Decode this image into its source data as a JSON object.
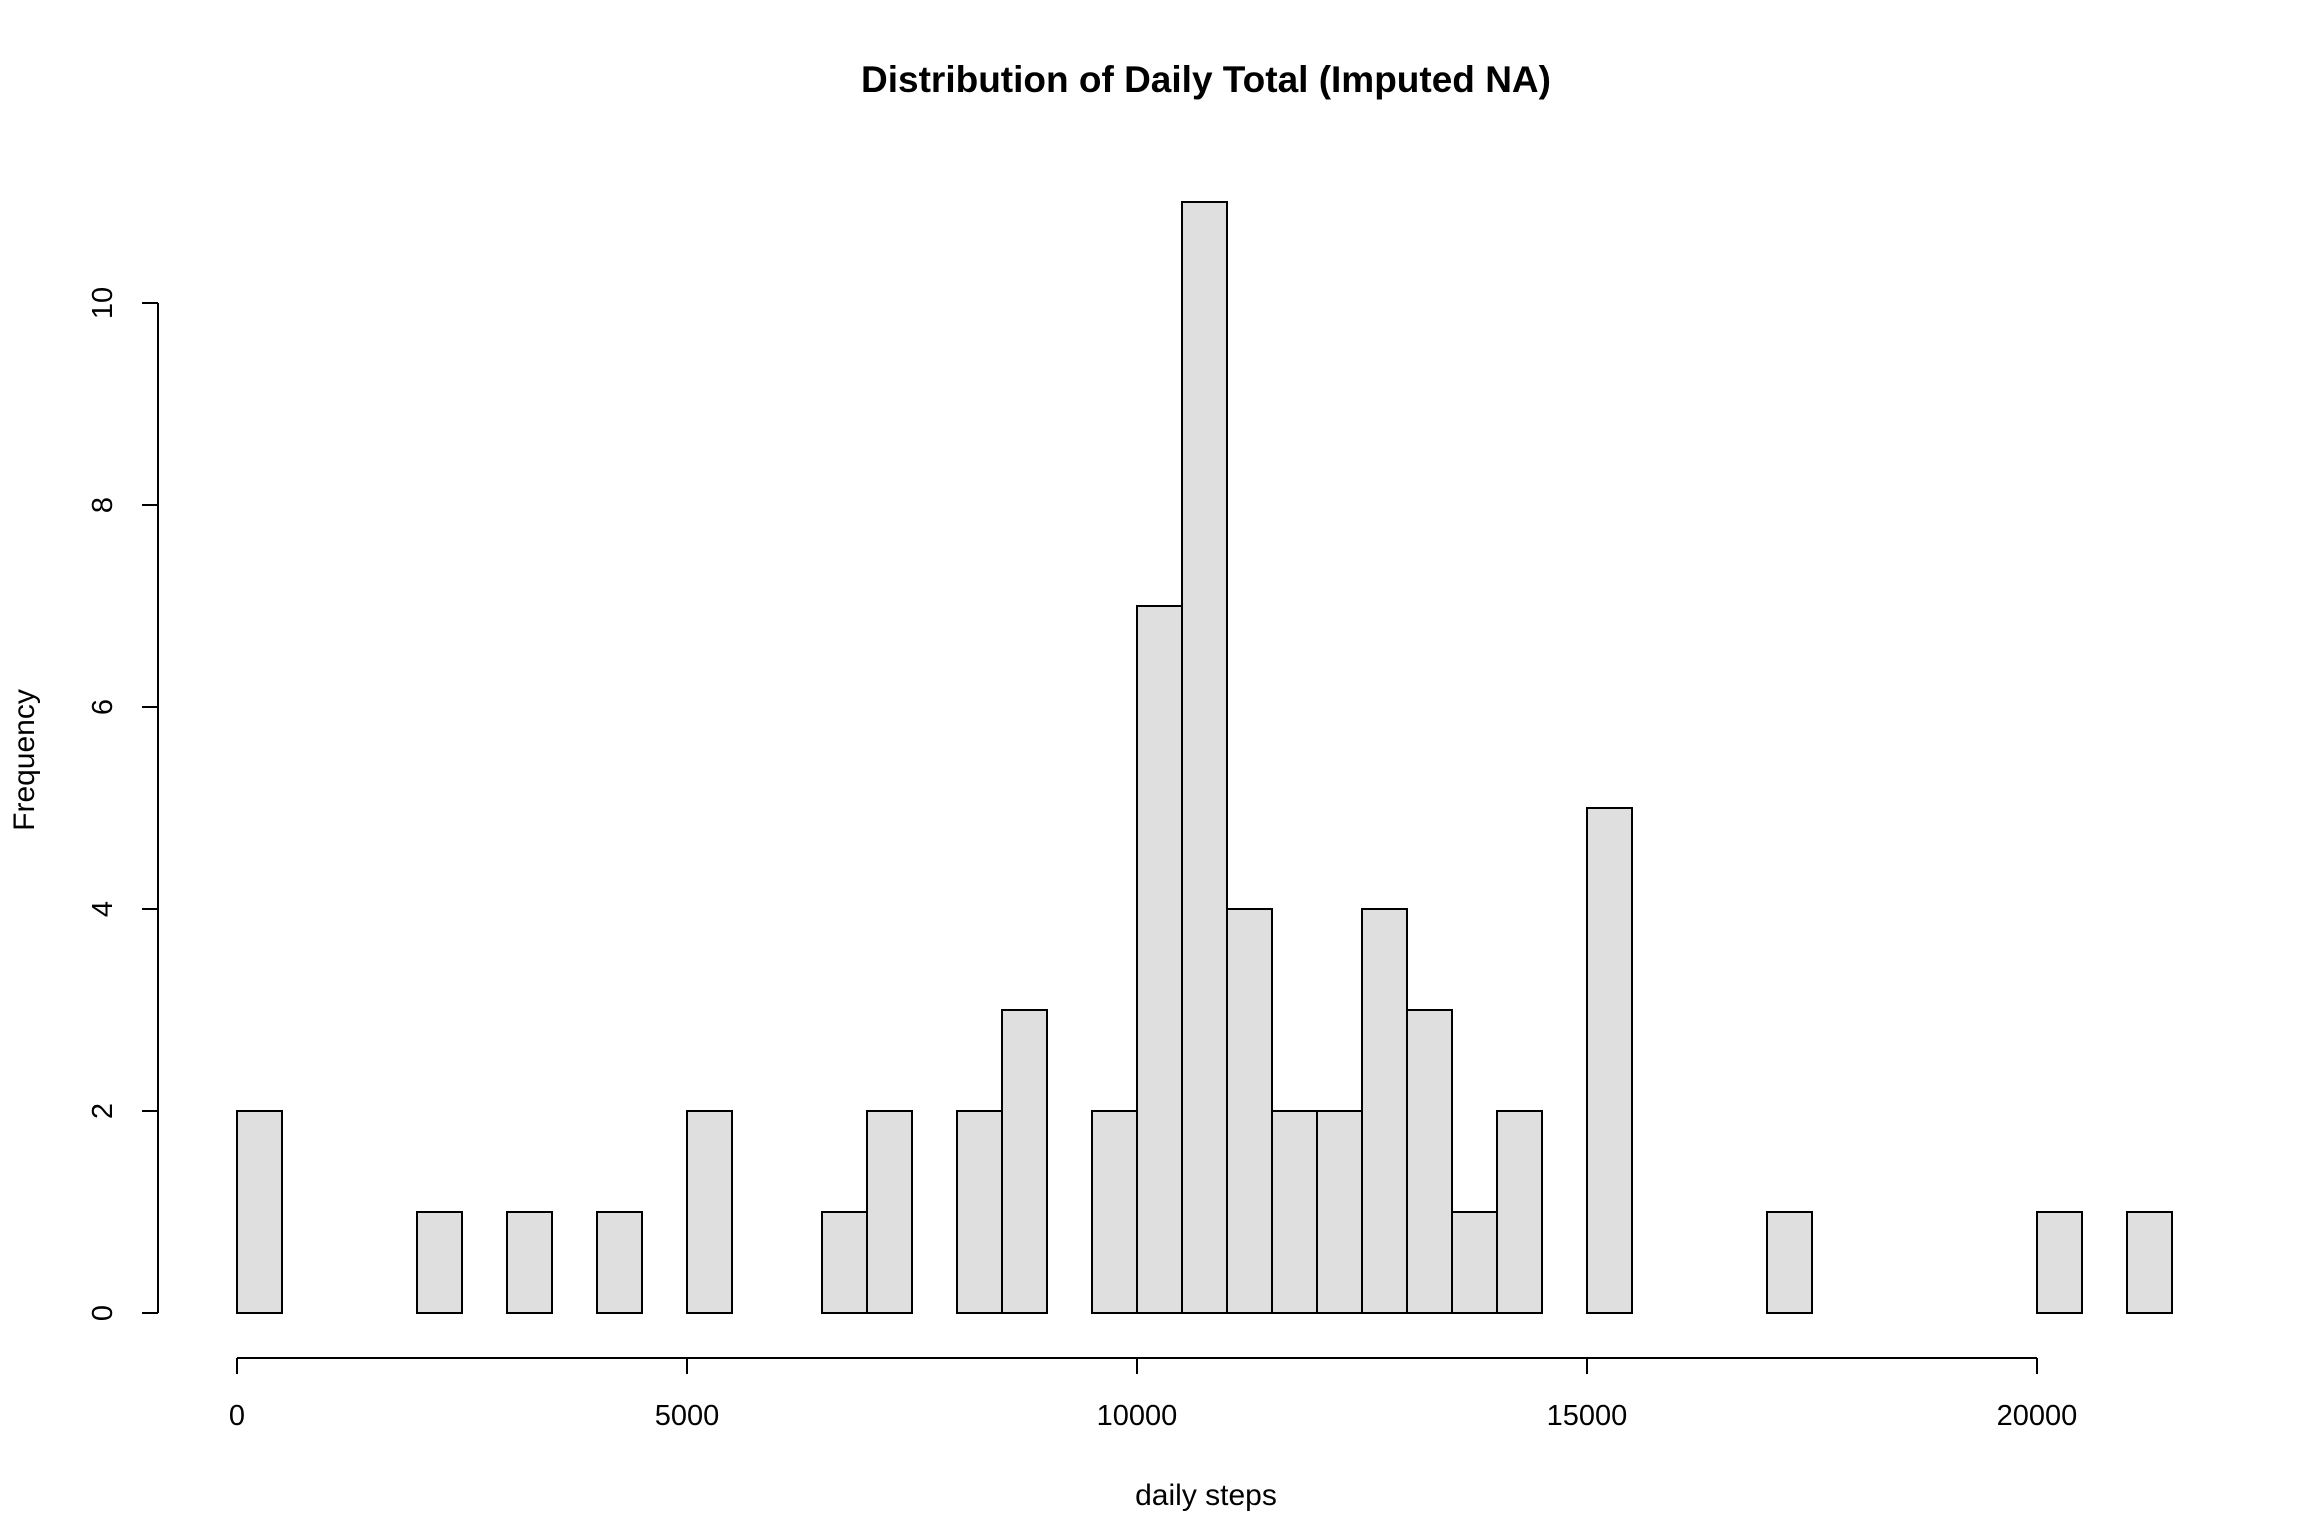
{
  "chart_data": {
    "type": "bar",
    "title": "Distribution of Daily Total (Imputed NA)",
    "xlabel": "daily steps",
    "ylabel": "Frequency",
    "bin_width": 500,
    "xlim": [
      0,
      21500
    ],
    "ylim": [
      0,
      11
    ],
    "x_ticks": [
      0,
      5000,
      10000,
      15000,
      20000
    ],
    "y_ticks": [
      0,
      2,
      4,
      6,
      8,
      10
    ],
    "bin_start": [
      0,
      500,
      1000,
      1500,
      2000,
      2500,
      3000,
      3500,
      4000,
      4500,
      5000,
      5500,
      6000,
      6500,
      7000,
      7500,
      8000,
      8500,
      9000,
      9500,
      10000,
      10500,
      11000,
      11500,
      12000,
      12500,
      13000,
      13500,
      14000,
      14500,
      15000,
      15500,
      16000,
      16500,
      17000,
      17500,
      18000,
      18500,
      19000,
      19500,
      20000,
      20500,
      21000
    ],
    "values": [
      2,
      0,
      0,
      0,
      1,
      0,
      1,
      0,
      1,
      0,
      2,
      0,
      0,
      1,
      2,
      0,
      2,
      3,
      0,
      2,
      7,
      11,
      4,
      2,
      2,
      4,
      3,
      1,
      2,
      0,
      5,
      0,
      0,
      0,
      1,
      0,
      0,
      0,
      0,
      0,
      1,
      0,
      1
    ],
    "grid": false,
    "colors": {
      "bar_fill": "#dfdfdf",
      "bar_stroke": "#000000"
    }
  }
}
